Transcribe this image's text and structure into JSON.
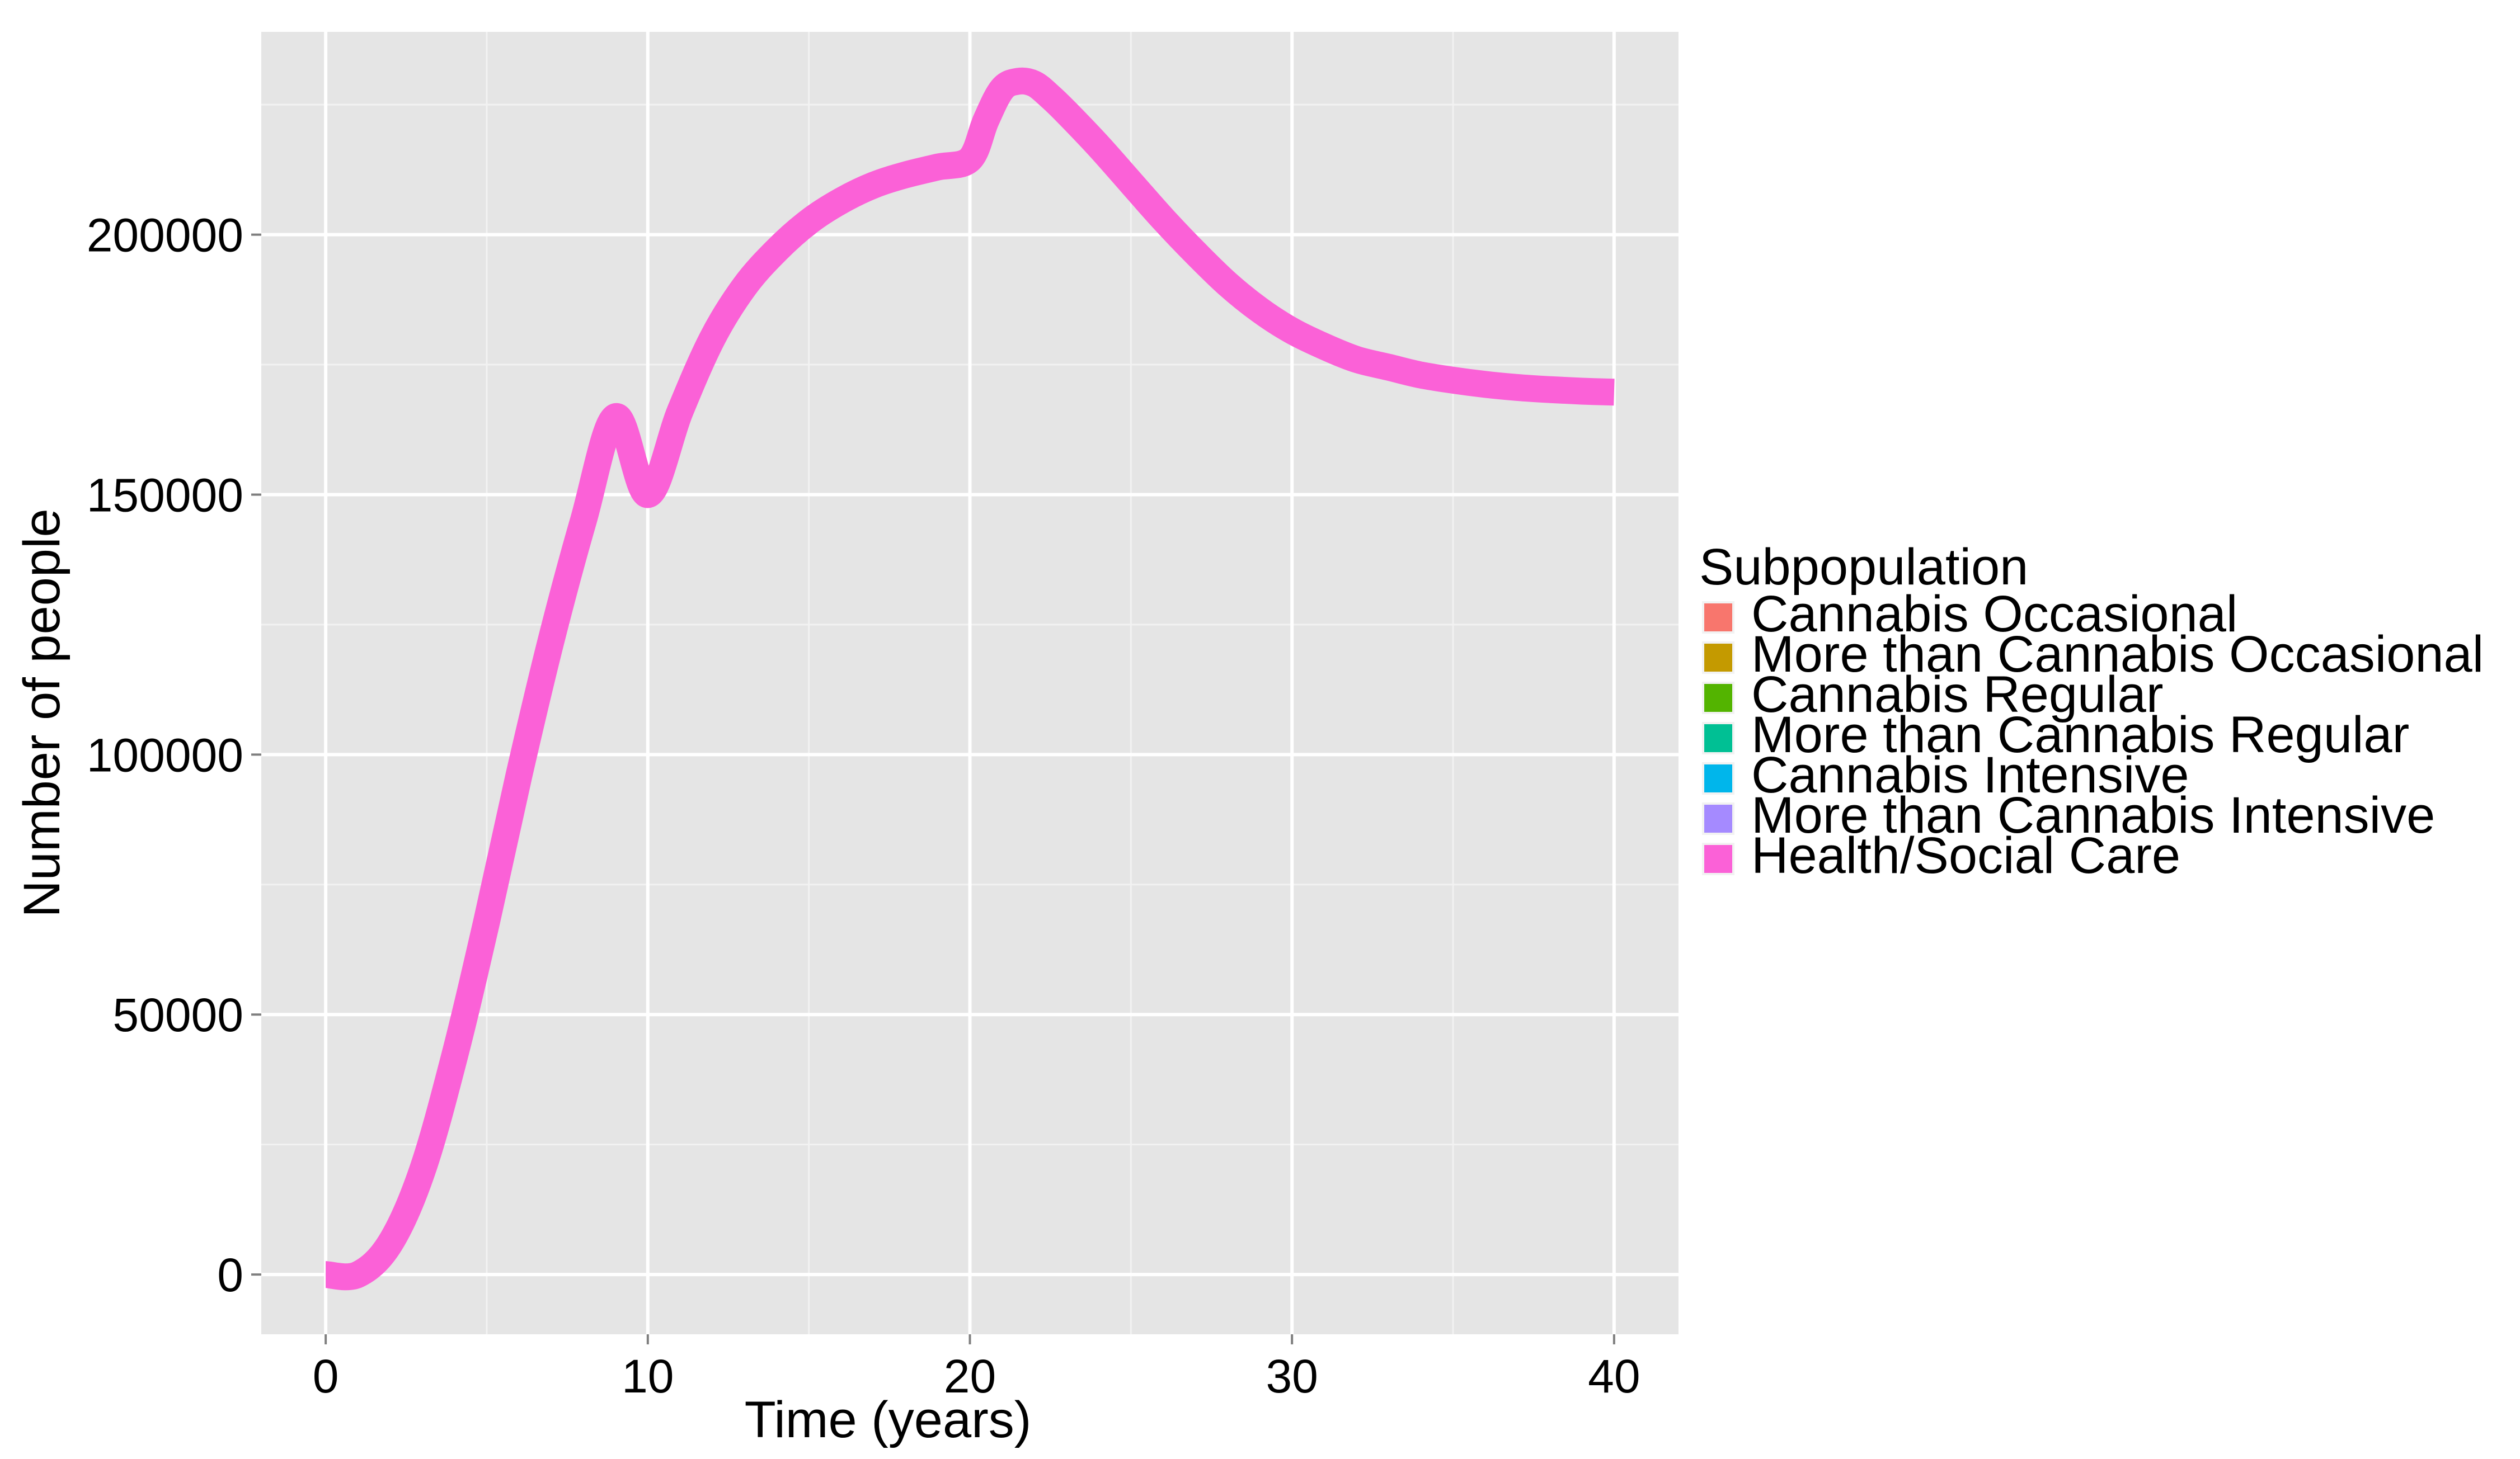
{
  "chart_data": {
    "type": "line",
    "title": "",
    "xlabel": "Time (years)",
    "ylabel": "Number of people",
    "xlim": [
      -2,
      42
    ],
    "ylim": [
      -11500,
      239000
    ],
    "x_ticks": [
      0,
      10,
      20,
      30,
      40
    ],
    "x_tick_labels": [
      "0",
      "10",
      "20",
      "30",
      "40"
    ],
    "y_ticks": [
      0,
      50000,
      100000,
      150000,
      200000
    ],
    "y_tick_labels": [
      "0",
      "50000",
      "100000",
      "150000",
      "200000"
    ],
    "grid": true,
    "background": "#e5e5e5",
    "legend": {
      "title": "Subpopulation",
      "position": "right",
      "entries": [
        {
          "label": "Cannabis Occasional",
          "color": "#F8766D"
        },
        {
          "label": "More than Cannabis Occasional",
          "color": "#C49A00"
        },
        {
          "label": "Cannabis Regular",
          "color": "#53B400"
        },
        {
          "label": "More than Cannabis Regular",
          "color": "#00C094"
        },
        {
          "label": "Cannabis Intensive",
          "color": "#00B6EB"
        },
        {
          "label": "More than Cannabis Intensive",
          "color": "#A58AFF"
        },
        {
          "label": "Health/Social Care",
          "color": "#FB61D7"
        }
      ]
    },
    "series": [
      {
        "name": "Health/Social Care",
        "color": "#FB61D7",
        "x": [
          0,
          1,
          2,
          3,
          4,
          5,
          6,
          7,
          8,
          9,
          10,
          11,
          12,
          13,
          14,
          15,
          16,
          17,
          18,
          19,
          20,
          20.5,
          21,
          21.5,
          22,
          22.5,
          23,
          24,
          25,
          26,
          27,
          28,
          29,
          30,
          31,
          32,
          33,
          34,
          35,
          36,
          37,
          38,
          39,
          40
        ],
        "y": [
          0,
          0,
          6000,
          20000,
          42000,
          68000,
          96000,
          122000,
          145000,
          165000,
          150000,
          166000,
          180000,
          190000,
          197000,
          202500,
          206500,
          209500,
          211500,
          213000,
          214500,
          222000,
          228000,
          229500,
          229000,
          226500,
          223500,
          217000,
          210000,
          203000,
          196500,
          190500,
          185500,
          181500,
          178500,
          176000,
          174500,
          173000,
          172000,
          171200,
          170600,
          170200,
          169900,
          169700
        ]
      }
    ]
  }
}
